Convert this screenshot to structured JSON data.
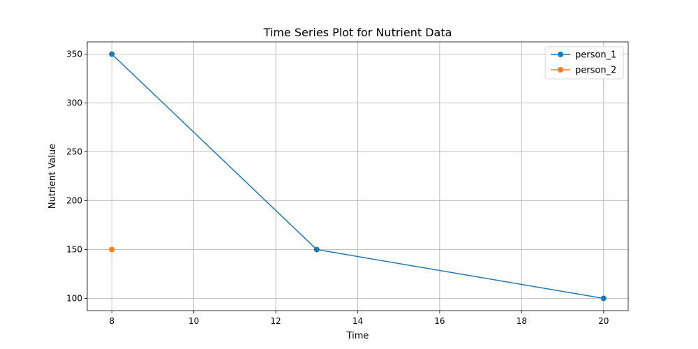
{
  "chart_data": {
    "type": "line",
    "title": "Time Series Plot for Nutrient Data",
    "xlabel": "Time",
    "ylabel": "Nutrient Value",
    "xlim": [
      7.4,
      20.6
    ],
    "ylim": [
      87.5,
      362.5
    ],
    "xticks": [
      8,
      10,
      12,
      14,
      16,
      18,
      20
    ],
    "yticks": [
      100,
      150,
      200,
      250,
      300,
      350
    ],
    "grid": true,
    "legend_position": "top-right",
    "series": [
      {
        "name": "person_1",
        "color": "#1f77b4",
        "x": [
          8,
          13,
          20
        ],
        "y": [
          350,
          150,
          100
        ]
      },
      {
        "name": "person_2",
        "color": "#ff7f0e",
        "x": [
          8
        ],
        "y": [
          150
        ]
      }
    ]
  }
}
